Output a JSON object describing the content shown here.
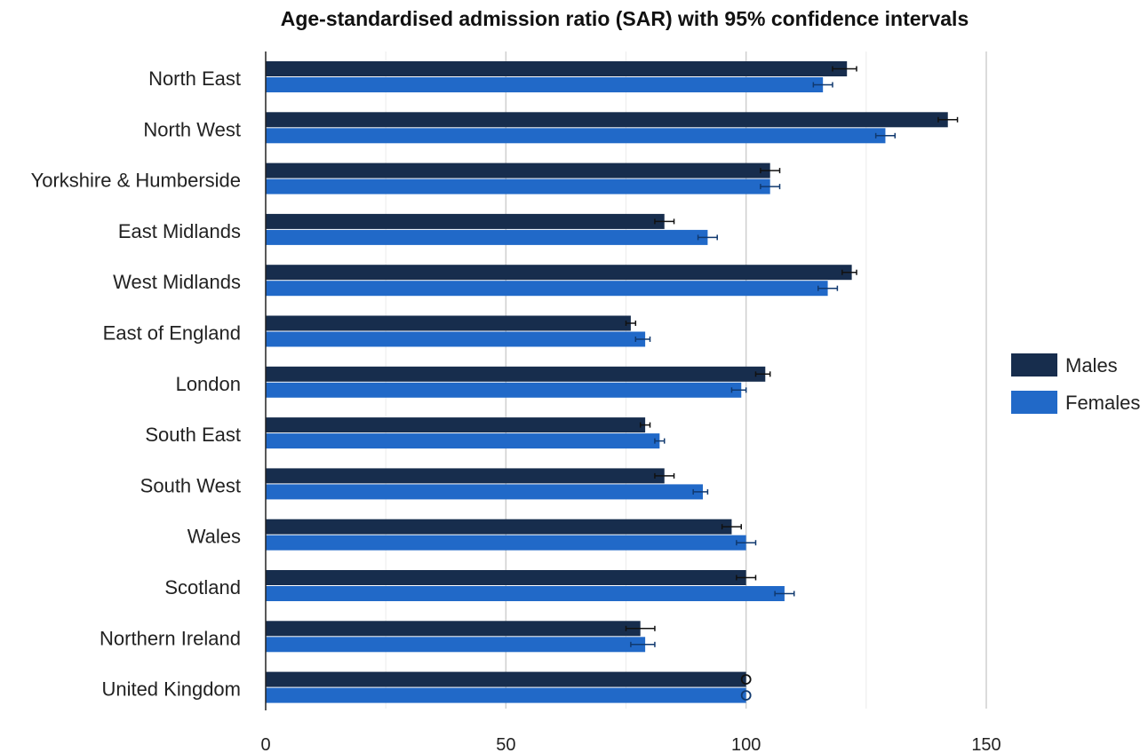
{
  "chart_data": {
    "type": "bar",
    "orientation": "horizontal",
    "title": "Age-standardised admission ratio (SAR) with 95% confidence intervals",
    "categories": [
      "North East",
      "North West",
      "Yorkshire & Humberside",
      "East Midlands",
      "West Midlands",
      "East of England",
      "London",
      "South East",
      "South West",
      "Wales",
      "Scotland",
      "Northern Ireland",
      "United Kingdom"
    ],
    "series": [
      {
        "name": "Males",
        "color": "#172d4d",
        "values": [
          121,
          142,
          105,
          83,
          122,
          76,
          104,
          79,
          83,
          97,
          100,
          78,
          100
        ],
        "ci_low": [
          118,
          140,
          103,
          81,
          120,
          75,
          102,
          78,
          81,
          95,
          98,
          75,
          100
        ],
        "ci_high": [
          123,
          144,
          107,
          85,
          123,
          77,
          105,
          80,
          85,
          99,
          102,
          81,
          100
        ]
      },
      {
        "name": "Females",
        "color": "#2169c8",
        "values": [
          116,
          129,
          105,
          92,
          117,
          79,
          99,
          82,
          91,
          100,
          108,
          79,
          100
        ],
        "ci_low": [
          114,
          127,
          103,
          90,
          115,
          77,
          97,
          81,
          89,
          98,
          106,
          76,
          100
        ],
        "ci_high": [
          118,
          131,
          107,
          94,
          119,
          80,
          100,
          83,
          92,
          102,
          110,
          81,
          100
        ]
      }
    ],
    "reference_category": "United Kingdom",
    "xlim": [
      0,
      150
    ],
    "xticks": [
      "0",
      "50",
      "100",
      "150"
    ],
    "grid": true,
    "legend_position": "right"
  }
}
